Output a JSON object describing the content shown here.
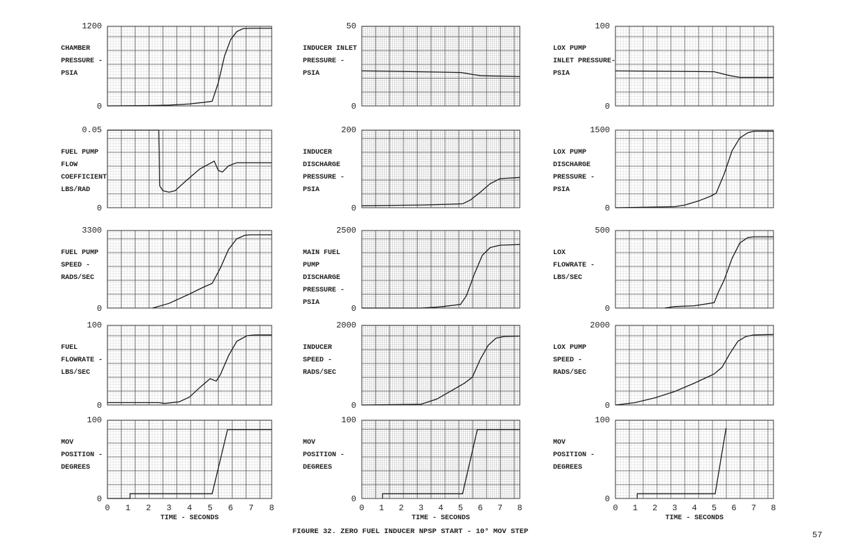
{
  "caption": "FIGURE 32.  ZERO FUEL INDUCER NPSP START - 10° MOV STEP",
  "page_number": "57",
  "chart_data": [
    {
      "type": "line",
      "column": 1,
      "row": 1,
      "ylabel": [
        "CHAMBER",
        "PRESSURE -",
        "PSIA"
      ],
      "ylim": [
        0,
        1200
      ],
      "ytick_labels": [
        "0",
        "1200"
      ],
      "x": [
        0,
        2,
        3,
        4,
        4.6,
        5.1,
        5.4,
        5.7,
        6.0,
        6.3,
        6.6,
        7.0,
        8
      ],
      "values": [
        0,
        5,
        12,
        30,
        50,
        70,
        350,
        750,
        1000,
        1120,
        1165,
        1170,
        1170
      ]
    },
    {
      "type": "line",
      "column": 1,
      "row": 2,
      "ylabel": [
        "FUEL PUMP",
        "FLOW",
        "COEFFICIENT",
        "LBS/RAD"
      ],
      "ylim": [
        0,
        0.05
      ],
      "ytick_labels": [
        "0",
        "0.05"
      ],
      "x": [
        0,
        2.5,
        2.55,
        2.7,
        3.0,
        3.3,
        3.8,
        4.5,
        5.2,
        5.4,
        5.6,
        5.9,
        6.3,
        8
      ],
      "values": [
        0.05,
        0.05,
        0.014,
        0.011,
        0.01,
        0.011,
        0.017,
        0.025,
        0.03,
        0.024,
        0.023,
        0.027,
        0.029,
        0.029
      ]
    },
    {
      "type": "line",
      "column": 1,
      "row": 3,
      "ylabel": [
        "FUEL PUMP",
        "SPEED -",
        "RADS/SEC"
      ],
      "ylim": [
        0,
        3300
      ],
      "ytick_labels": [
        "0",
        "3300"
      ],
      "x": [
        2.2,
        3,
        4,
        4.7,
        5.1,
        5.5,
        5.9,
        6.3,
        6.7,
        7,
        8
      ],
      "values": [
        0,
        200,
        600,
        900,
        1050,
        1700,
        2500,
        2950,
        3100,
        3120,
        3120
      ]
    },
    {
      "type": "line",
      "column": 1,
      "row": 4,
      "ylabel": [
        "FUEL",
        "FLOWRATE -",
        "LBS/SEC"
      ],
      "ylim": [
        0,
        100
      ],
      "ytick_labels": [
        "0",
        "100"
      ],
      "x": [
        0,
        2.5,
        2.8,
        3.5,
        4,
        4.5,
        5.0,
        5.3,
        5.5,
        5.9,
        6.3,
        6.8,
        7.2,
        8
      ],
      "values": [
        3,
        3,
        2,
        4,
        10,
        22,
        33,
        30,
        38,
        62,
        80,
        87,
        88,
        88
      ]
    },
    {
      "type": "line",
      "column": 1,
      "row": 5,
      "ylabel": [
        "MOV",
        "POSITION -",
        "DEGREES"
      ],
      "ylim": [
        0,
        100
      ],
      "ytick_labels": [
        "0",
        "100"
      ],
      "x": [
        0,
        1.1,
        1.1,
        5.1,
        5.85,
        8
      ],
      "values": [
        0,
        0,
        6,
        6,
        88,
        88
      ]
    },
    {
      "type": "line",
      "column": 2,
      "row": 1,
      "ylabel": [
        "INDUCER INLET",
        "PRESSURE -",
        "PSIA"
      ],
      "ylim": [
        0,
        50
      ],
      "ytick_labels": [
        "0",
        "50"
      ],
      "x": [
        0,
        3,
        5,
        5.5,
        6,
        8
      ],
      "values": [
        22,
        21.5,
        21,
        20,
        19,
        18.5
      ]
    },
    {
      "type": "line",
      "column": 2,
      "row": 2,
      "ylabel": [
        "INDUCER",
        "DISCHARGE",
        "PRESSURE -",
        "PSIA"
      ],
      "ylim": [
        0,
        200
      ],
      "ytick_labels": [
        "0",
        "200"
      ],
      "x": [
        0,
        3,
        4.5,
        5.1,
        5.5,
        6,
        6.5,
        7,
        8
      ],
      "values": [
        5,
        7,
        9,
        10,
        20,
        40,
        62,
        75,
        78
      ]
    },
    {
      "type": "line",
      "column": 2,
      "row": 3,
      "ylabel": [
        "MAIN FUEL",
        "PUMP",
        "DISCHARGE",
        "PRESSURE -",
        "PSIA"
      ],
      "ylim": [
        0,
        2500
      ],
      "ytick_labels": [
        "0",
        "2500"
      ],
      "x": [
        0,
        3,
        4,
        5,
        5.3,
        5.7,
        6.1,
        6.5,
        7,
        8
      ],
      "values": [
        0,
        0,
        40,
        120,
        400,
        1100,
        1700,
        1950,
        2030,
        2050
      ]
    },
    {
      "type": "line",
      "column": 2,
      "row": 4,
      "ylabel": [
        "INDUCER",
        "SPEED -",
        "RADS/SEC"
      ],
      "ylim": [
        0,
        2000
      ],
      "ytick_labels": [
        "0",
        "2000"
      ],
      "x": [
        0,
        3,
        3.8,
        4.5,
        5.2,
        5.6,
        6.0,
        6.4,
        6.8,
        7.2,
        8
      ],
      "values": [
        0,
        20,
        150,
        350,
        550,
        700,
        1150,
        1500,
        1680,
        1720,
        1730
      ]
    },
    {
      "type": "line",
      "column": 2,
      "row": 5,
      "ylabel": [
        "MOV",
        "POSITION -",
        "DEGREES"
      ],
      "ylim": [
        0,
        100
      ],
      "ytick_labels": [
        "0",
        "100"
      ],
      "x": [
        1.05,
        1.05,
        5.1,
        5.85,
        8
      ],
      "values": [
        0,
        6,
        6,
        88,
        88
      ]
    },
    {
      "type": "line",
      "column": 3,
      "row": 1,
      "ylabel": [
        "LOX PUMP",
        "INLET PRESSURE-",
        "PSIA"
      ],
      "ylim": [
        0,
        100
      ],
      "ytick_labels": [
        "0",
        "100"
      ],
      "x": [
        0,
        3,
        5,
        5.3,
        5.8,
        6.3,
        8
      ],
      "values": [
        44,
        43.5,
        43,
        41,
        38,
        36,
        36
      ]
    },
    {
      "type": "line",
      "column": 3,
      "row": 2,
      "ylabel": [
        "LOX PUMP",
        "DISCHARGE",
        "PRESSURE -",
        "PSIA"
      ],
      "ylim": [
        0,
        1500
      ],
      "ytick_labels": [
        "0",
        "1500"
      ],
      "x": [
        0,
        3,
        3.5,
        4.2,
        4.8,
        5.1,
        5.5,
        5.9,
        6.3,
        6.7,
        7,
        8
      ],
      "values": [
        0,
        20,
        50,
        130,
        220,
        280,
        650,
        1100,
        1350,
        1450,
        1480,
        1480
      ]
    },
    {
      "type": "line",
      "column": 3,
      "row": 3,
      "ylabel": [
        "LOX",
        "FLOWRATE -",
        "LBS/SEC"
      ],
      "ylim": [
        0,
        500
      ],
      "ytick_labels": [
        "0",
        "500"
      ],
      "x": [
        2.5,
        3,
        4,
        5,
        5.2,
        5.5,
        5.9,
        6.3,
        6.7,
        7,
        8
      ],
      "values": [
        0,
        10,
        15,
        35,
        100,
        180,
        320,
        420,
        455,
        460,
        460
      ]
    },
    {
      "type": "line",
      "column": 3,
      "row": 4,
      "ylabel": [
        "LOX PUMP",
        "SPEED -",
        "RADS/SEC"
      ],
      "ylim": [
        0,
        2000
      ],
      "ytick_labels": [
        "0",
        "2000"
      ],
      "x": [
        0,
        1,
        2,
        3,
        4,
        5,
        5.4,
        5.8,
        6.2,
        6.6,
        7,
        8
      ],
      "values": [
        0,
        60,
        180,
        340,
        550,
        780,
        950,
        1300,
        1600,
        1720,
        1760,
        1770
      ]
    },
    {
      "type": "line",
      "column": 3,
      "row": 5,
      "ylabel": [
        "MOV",
        "POSITION -",
        "DEGREES"
      ],
      "ylim": [
        0,
        100
      ],
      "ytick_labels": [
        "0",
        "100"
      ],
      "x": [
        1.1,
        1.1,
        5.05,
        5.6
      ],
      "values": [
        0,
        6,
        6,
        90
      ]
    }
  ],
  "xaxis": {
    "label": "TIME - SECONDS",
    "xlim": [
      0,
      8
    ],
    "tick_labels": [
      "0",
      "1",
      "2",
      "3",
      "4",
      "5",
      "6",
      "7",
      "8"
    ]
  }
}
